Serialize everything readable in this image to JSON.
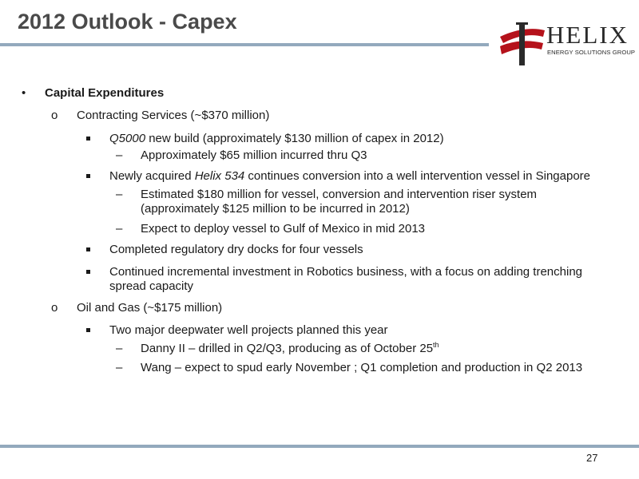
{
  "header": {
    "title": "2012 Outlook - Capex"
  },
  "logo": {
    "word": "HELIX",
    "subtitle": "ENERGY SOLUTIONS GROUP",
    "colors": {
      "red": "#b5121b",
      "dark": "#2a2a2a"
    }
  },
  "body": {
    "heading": "Capital Expenditures",
    "contracting": {
      "label": "Contracting Services (~$370 million)",
      "q5000": {
        "italic": "Q5000",
        "rest": " new build (approximately $130 million of capex in 2012)",
        "sub": [
          "Approximately $65 million incurred thru Q3"
        ]
      },
      "helix534": {
        "pre": "Newly acquired ",
        "italic": "Helix 534",
        "rest": " continues conversion into a well intervention vessel in Singapore",
        "sub1_line1": "Estimated $180 million for vessel, conversion and intervention riser system",
        "sub1_line2": "(approximately $125 million to be incurred in 2012)",
        "sub2": "Expect to deploy vessel to Gulf of Mexico in mid 2013"
      },
      "drydocks": "Completed regulatory dry docks for four vessels",
      "robotics_line1": "Continued incremental investment in Robotics business, with a focus on adding trenching",
      "robotics_line2": "spread capacity"
    },
    "oilgas": {
      "label": "Oil and Gas (~$175 million)",
      "projects": "Two major deepwater well projects planned this year",
      "danny_main": "Danny II – drilled in Q2/Q3, producing as of October 25",
      "danny_sup": "th",
      "wang": "Wang – expect to spud early November ; Q1 completion and production in Q2 2013"
    }
  },
  "footer": {
    "page_number": "27"
  },
  "glyphs": {
    "bullet": "•",
    "circle": "o",
    "dash": "–"
  }
}
